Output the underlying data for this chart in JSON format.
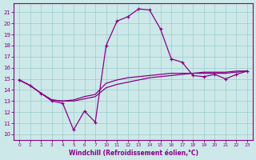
{
  "title": "Windchill (Refroidissement éolien,°C)",
  "bg_color": "#cde8e8",
  "line_color": "#880088",
  "grid_color": "#99cccc",
  "ylim": [
    9.5,
    21.8
  ],
  "ytick_vals": [
    10,
    11,
    12,
    13,
    14,
    15,
    16,
    17,
    18,
    19,
    20,
    21
  ],
  "hour_labels": [
    "0",
    "1",
    "2",
    "3",
    "4",
    "5",
    "6",
    "7",
    "10",
    "11",
    "12",
    "13",
    "14",
    "15",
    "16",
    "17",
    "18",
    "19",
    "20",
    "21",
    "22",
    "23"
  ],
  "s1_y": [
    14.9,
    14.4,
    13.7,
    13.0,
    12.8,
    10.4,
    12.1,
    11.1,
    18.0,
    20.2,
    20.6,
    21.3,
    21.2,
    19.5,
    16.8,
    16.5,
    15.3,
    15.2,
    15.4,
    15.0,
    15.4,
    15.7
  ],
  "s2_y": [
    14.9,
    14.4,
    13.7,
    13.1,
    13.0,
    13.0,
    13.2,
    13.4,
    14.2,
    14.5,
    14.7,
    14.9,
    15.1,
    15.2,
    15.3,
    15.4,
    15.5,
    15.5,
    15.5,
    15.5,
    15.6,
    15.7
  ],
  "s3_y": [
    14.9,
    14.4,
    13.7,
    13.1,
    13.0,
    13.1,
    13.4,
    13.6,
    14.6,
    14.9,
    15.1,
    15.2,
    15.3,
    15.4,
    15.5,
    15.5,
    15.5,
    15.6,
    15.6,
    15.6,
    15.7,
    15.7
  ]
}
